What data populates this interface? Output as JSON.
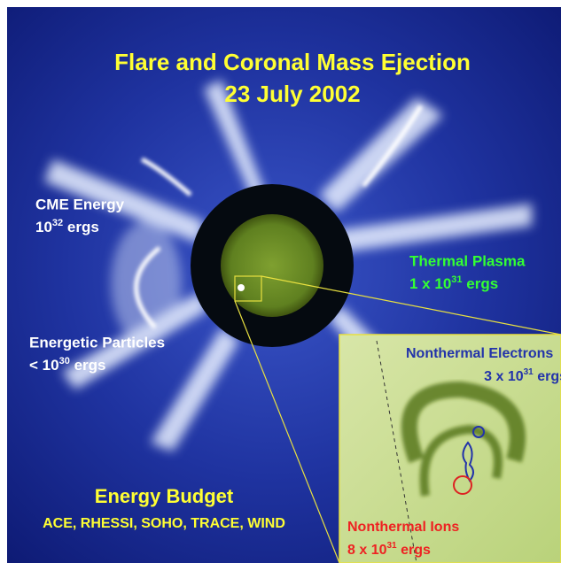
{
  "title": {
    "line1": "Flare and Coronal Mass Ejection",
    "line2": "23 July 2002"
  },
  "labels": [
    {
      "name": "CME Energy",
      "energy": {
        "base": "10",
        "exp": "32",
        "unit": "ergs"
      }
    },
    {
      "name": "Thermal Plasma",
      "energy": {
        "prefix": "1 x",
        "base": "10",
        "exp": "31",
        "unit": "ergs"
      }
    },
    {
      "name": "Energetic Particles",
      "energy": {
        "prefix": "<",
        "base": "10",
        "exp": "30",
        "unit": "ergs"
      }
    },
    {
      "name": "Nonthermal Electrons",
      "energy": {
        "prefix": "3 x",
        "base": "10",
        "exp": "31",
        "unit": "ergs"
      }
    },
    {
      "name": "Nonthermal Ions",
      "energy": {
        "prefix": "8 x",
        "base": "10",
        "exp": "31",
        "unit": "ergs"
      }
    }
  ],
  "footer": {
    "title": "Energy Budget",
    "missions": "ACE, RHESSI, SOHO, TRACE, WIND"
  }
}
